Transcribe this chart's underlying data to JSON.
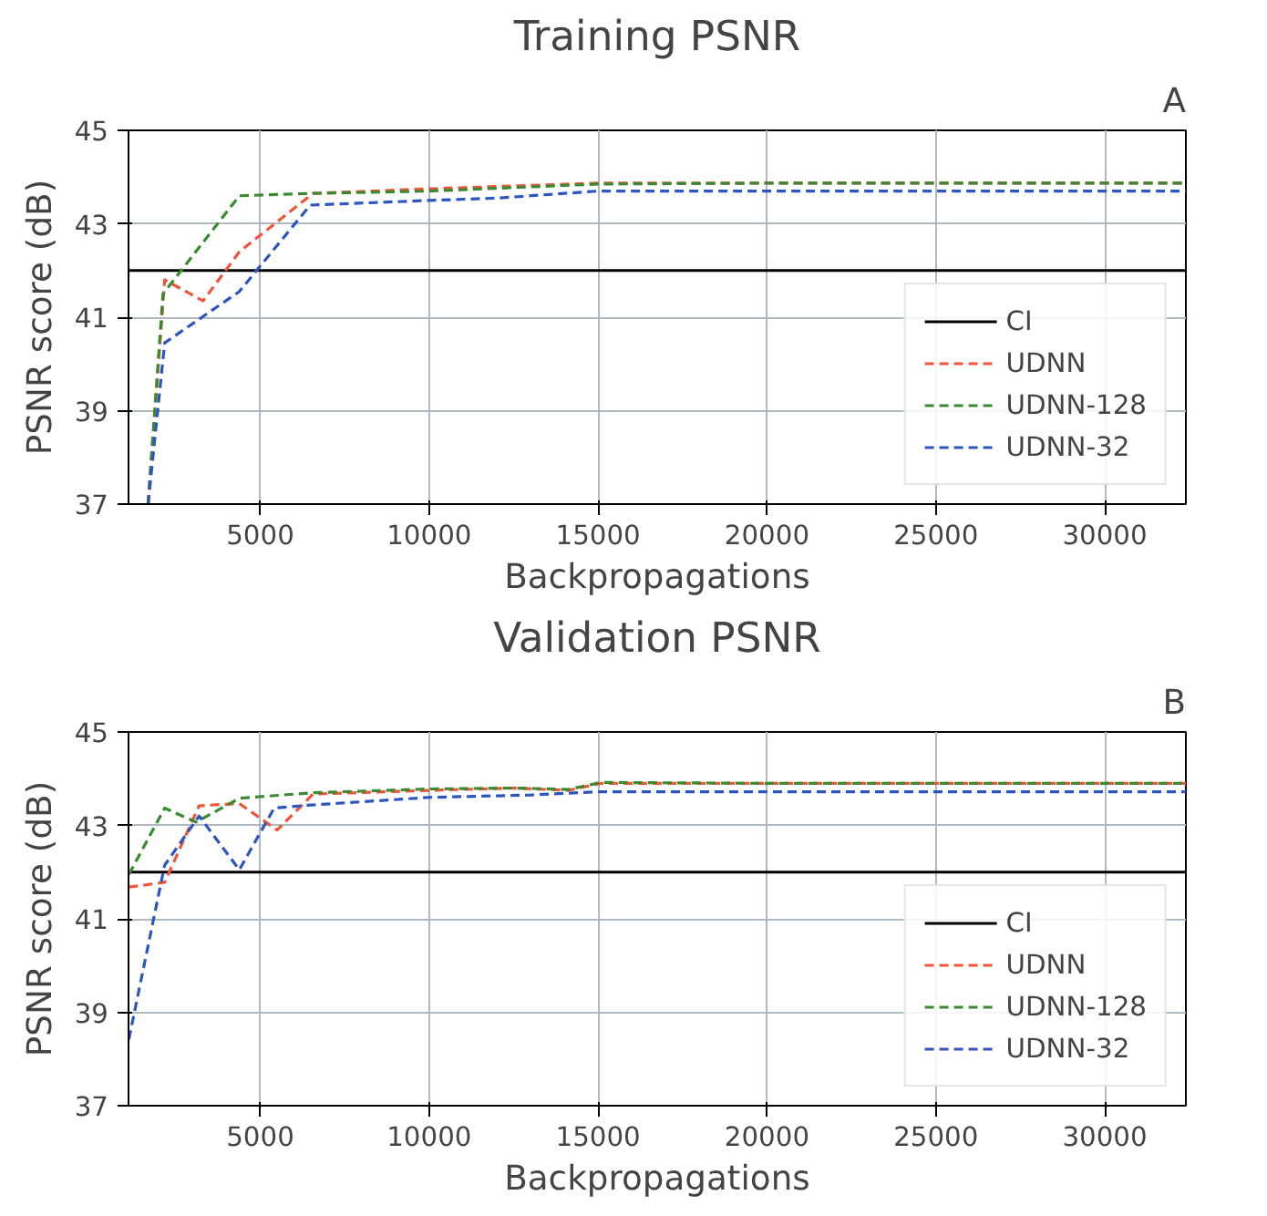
{
  "chart_data": [
    {
      "type": "line",
      "title": "Training PSNR",
      "xlabel": "Backpropagations",
      "ylabel": "PSNR score (dB)",
      "annotations": [
        "A"
      ],
      "xlim": [
        1100,
        32400
      ],
      "ylim": [
        37,
        45
      ],
      "xticks": [
        5000,
        10000,
        15000,
        20000,
        25000,
        30000
      ],
      "yticks": [
        37,
        39,
        41,
        43,
        45
      ],
      "grid": true,
      "legend": "bottom right",
      "line_style": "dashed",
      "series": [
        {
          "name": "CI",
          "color": "#000000",
          "line_style": "solid",
          "x": [
            1100,
            32400
          ],
          "values": [
            42,
            42
          ]
        },
        {
          "name": "UDNN",
          "color": "#f0553a",
          "x": [
            1680,
            2170,
            3310,
            4380,
            6560,
            10000,
            15000,
            20000,
            32400
          ],
          "values": [
            37,
            41.8,
            41.35,
            42.4,
            43.65,
            43.75,
            43.87,
            43.87,
            43.87
          ]
        },
        {
          "name": "UDNN-128",
          "color": "#3a8a30",
          "x": [
            1680,
            2120,
            4380,
            6560,
            10000,
            15000,
            20000,
            32400
          ],
          "values": [
            37,
            41.5,
            43.6,
            43.65,
            43.7,
            43.85,
            43.87,
            43.87
          ]
        },
        {
          "name": "UDNN-32",
          "color": "#2d55c0",
          "x": [
            1680,
            2170,
            4380,
            6480,
            10000,
            12000,
            15000,
            20000,
            32400
          ],
          "values": [
            37,
            40.45,
            41.55,
            43.4,
            43.5,
            43.55,
            43.7,
            43.7,
            43.7
          ]
        }
      ]
    },
    {
      "type": "line",
      "title": "Validation PSNR",
      "xlabel": "Backpropagations",
      "ylabel": "PSNR score (dB)",
      "annotations": [
        "B"
      ],
      "xlim": [
        1100,
        32400
      ],
      "ylim": [
        37,
        45
      ],
      "xticks": [
        5000,
        10000,
        15000,
        20000,
        25000,
        30000
      ],
      "yticks": [
        37,
        39,
        41,
        43,
        45
      ],
      "grid": true,
      "legend": "bottom right",
      "line_style": "dashed",
      "series": [
        {
          "name": "CI",
          "color": "#000000",
          "line_style": "solid",
          "x": [
            1100,
            32400
          ],
          "values": [
            42,
            42
          ]
        },
        {
          "name": "UDNN",
          "color": "#f0553a",
          "x": [
            1110,
            2170,
            3190,
            4380,
            5500,
            6560,
            10000,
            12500,
            14120,
            15080,
            20000,
            32400
          ],
          "values": [
            41.68,
            41.78,
            43.42,
            43.47,
            42.9,
            43.67,
            43.75,
            43.8,
            43.75,
            43.9,
            43.9,
            43.9
          ]
        },
        {
          "name": "UDNN-128",
          "color": "#3a8a30",
          "x": [
            1110,
            2170,
            3100,
            4380,
            6560,
            10000,
            12500,
            14120,
            15080,
            20000,
            32400
          ],
          "values": [
            41.95,
            43.37,
            43.07,
            43.58,
            43.7,
            43.78,
            43.8,
            43.77,
            43.92,
            43.9,
            43.9
          ]
        },
        {
          "name": "UDNN-32",
          "color": "#2d55c0",
          "x": [
            1110,
            2170,
            3190,
            4380,
            5410,
            6380,
            10000,
            13000,
            15000,
            20000,
            32400
          ],
          "values": [
            38.42,
            42.15,
            43.2,
            42.05,
            43.37,
            43.43,
            43.6,
            43.65,
            43.72,
            43.72,
            43.72
          ]
        }
      ]
    }
  ]
}
